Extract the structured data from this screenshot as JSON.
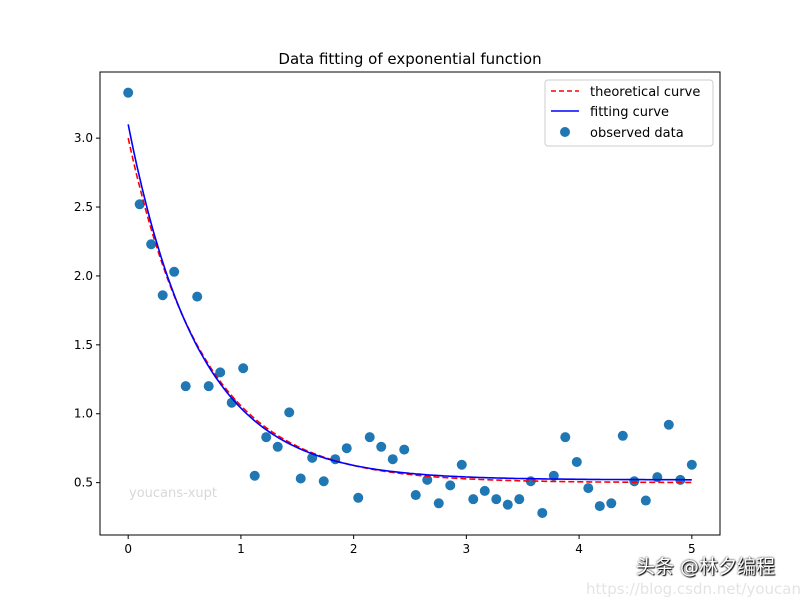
{
  "chart_data": {
    "type": "scatter",
    "title": "Data fitting of exponential function",
    "xlabel": "",
    "ylabel": "",
    "xlim": [
      -0.25,
      5.25
    ],
    "ylim": [
      0.12,
      3.48
    ],
    "xticks": [
      0,
      1,
      2,
      3,
      4,
      5
    ],
    "xtick_labels": [
      "0",
      "1",
      "2",
      "3",
      "4",
      "5"
    ],
    "yticks": [
      0.5,
      1.0,
      1.5,
      2.0,
      2.5,
      3.0
    ],
    "ytick_labels": [
      "0.5",
      "1.0",
      "1.5",
      "2.0",
      "2.5",
      "3.0"
    ],
    "grid": false,
    "legend_position": "top-right",
    "series": [
      {
        "name": "theoretical curve",
        "kind": "line",
        "style": "dashed",
        "color": "#ff0000",
        "model": "a*exp(-b*x)+c",
        "params": {
          "a": 2.5,
          "b": 1.5,
          "c": 0.5
        },
        "x_range": [
          0,
          5
        ]
      },
      {
        "name": "fitting curve",
        "kind": "line",
        "style": "solid",
        "color": "#0000ff",
        "model": "a*exp(-b*x)+c",
        "params": {
          "a": 2.58,
          "b": 1.6,
          "c": 0.52
        },
        "x_range": [
          0,
          5
        ]
      },
      {
        "name": "observed data",
        "kind": "scatter",
        "color": "#1f77b4",
        "x_range": [
          0,
          5
        ],
        "y": [
          3.33,
          2.52,
          2.23,
          1.86,
          2.03,
          1.2,
          1.85,
          1.2,
          1.3,
          1.08,
          1.33,
          0.55,
          0.83,
          0.76,
          1.01,
          0.53,
          0.68,
          0.51,
          0.67,
          0.75,
          0.39,
          0.83,
          0.76,
          0.67,
          0.74,
          0.41,
          0.52,
          0.35,
          0.48,
          0.63,
          0.38,
          0.44,
          0.38,
          0.34,
          0.38,
          0.51,
          0.28,
          0.55,
          0.83,
          0.65,
          0.46,
          0.33,
          0.35,
          0.84,
          0.51,
          0.37,
          0.54,
          0.92,
          0.52,
          0.63
        ]
      }
    ],
    "annotations": [
      "youcans-xupt"
    ]
  },
  "watermarks": {
    "plot": "youcans-xupt",
    "brand": "头条 @林夕编程",
    "url": "https://blog.csdn.net/youcans"
  }
}
